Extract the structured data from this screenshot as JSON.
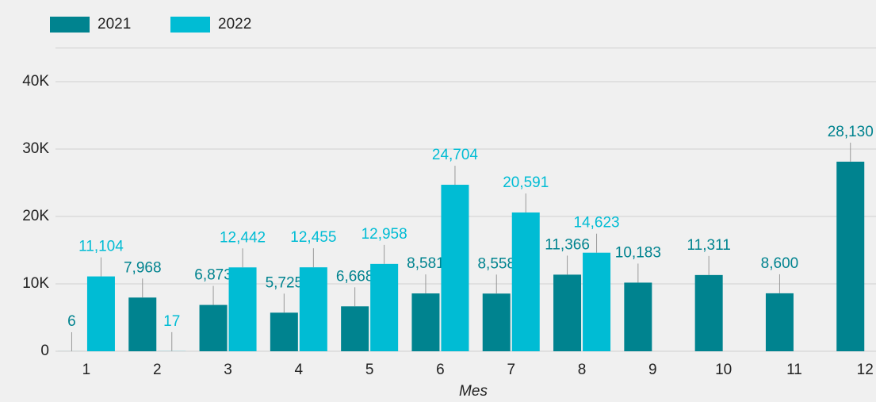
{
  "chart_data": {
    "type": "bar",
    "x_label": "Mes",
    "categories": [
      "1",
      "2",
      "3",
      "4",
      "5",
      "6",
      "7",
      "8",
      "9",
      "10",
      "11",
      "12"
    ],
    "series": [
      {
        "name": "2021",
        "color": "#00838f",
        "values": [
          6,
          7968,
          6873,
          5725,
          6668,
          8581,
          8558,
          11366,
          10183,
          11311,
          8600,
          28130
        ],
        "value_labels": [
          "6",
          "7,968",
          "6,873",
          "5,725",
          "6,668",
          "8,581",
          "8,558",
          "11,366",
          "10,183",
          "11,311",
          "8,600",
          "28,130"
        ]
      },
      {
        "name": "2022",
        "color": "#00bcd4",
        "values": [
          11104,
          17,
          12442,
          12455,
          12958,
          24704,
          20591,
          14623,
          null,
          null,
          null,
          null
        ],
        "value_labels": [
          "11,104",
          "17",
          "12,442",
          "12,455",
          "12,958",
          "24,704",
          "20,591",
          "14,623",
          null,
          null,
          null,
          null
        ]
      }
    ],
    "ylim": [
      0,
      45000
    ],
    "yticks": [
      0,
      {
        "value": 10000,
        "label": "10K"
      },
      {
        "value": 20000,
        "label": "20K"
      },
      {
        "value": 30000,
        "label": "30K"
      },
      {
        "value": 40000,
        "label": "40K"
      }
    ],
    "grid": true,
    "legend": "top-left"
  }
}
